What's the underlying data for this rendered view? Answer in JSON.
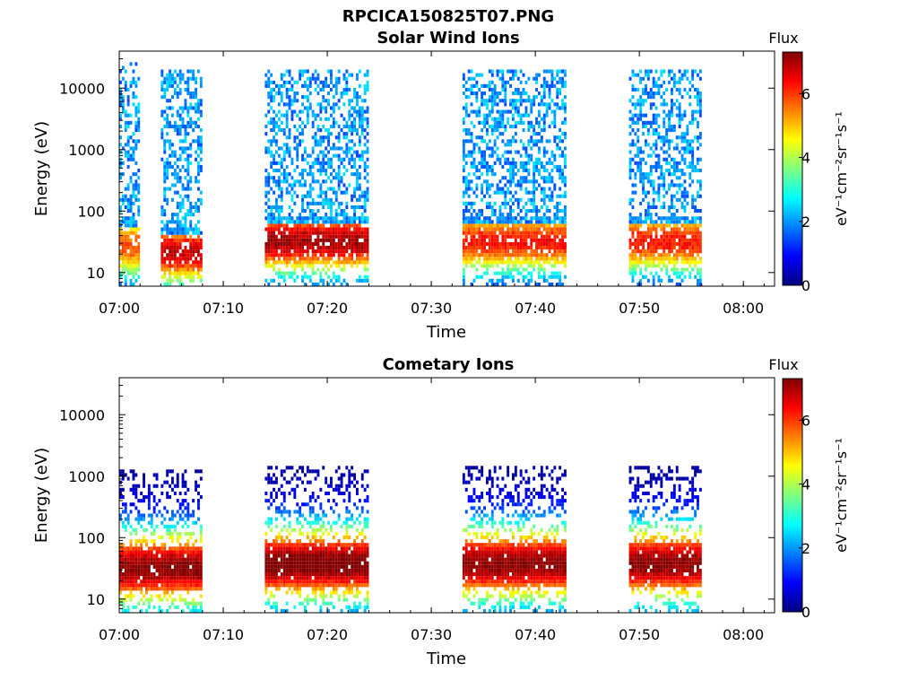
{
  "figure": {
    "title": "RPCICA150825T07.PNG",
    "colormap": [
      "#00007f",
      "#0000ff",
      "#007fff",
      "#00ffff",
      "#7fff7f",
      "#ffff00",
      "#ff7f00",
      "#ff0000",
      "#7f0000"
    ]
  },
  "colorbar": {
    "label": "Flux",
    "unit_text": "eV⁻¹cm⁻²sr⁻¹s⁻¹",
    "range": [
      0,
      7.3
    ],
    "ticks": [
      "0",
      "2",
      "4",
      "6"
    ]
  },
  "chart_data": [
    {
      "type": "heatmap",
      "title": "Solar Wind Ions",
      "xlabel": "Time",
      "ylabel": "Energy (eV)",
      "xlim": [
        "07:00",
        "08:03"
      ],
      "ylim": [
        6,
        40000
      ],
      "yscale": "log",
      "x_ticks": [
        "07:00",
        "07:10",
        "07:20",
        "07:30",
        "07:40",
        "07:50",
        "08:00"
      ],
      "y_ticks": [
        "10",
        "100",
        "1000",
        "10000"
      ],
      "grid": false,
      "bursts": [
        {
          "start": "07:00",
          "end": "07:02",
          "emax": 20000,
          "peak_energy": 25,
          "peak_flux": 5.5
        },
        {
          "start": "07:04",
          "end": "07:08",
          "emax": 15000,
          "peak_energy": 20,
          "peak_flux": 6.5
        },
        {
          "start": "07:14",
          "end": "07:24",
          "emax": 15000,
          "peak_energy": 30,
          "peak_flux": 6.8
        },
        {
          "start": "07:33",
          "end": "07:43",
          "emax": 15000,
          "peak_energy": 30,
          "peak_flux": 6.0
        },
        {
          "start": "07:49",
          "end": "07:56",
          "emax": 15000,
          "peak_energy": 30,
          "peak_flux": 6.0
        }
      ]
    },
    {
      "type": "heatmap",
      "title": "Cometary Ions",
      "xlabel": "Time",
      "ylabel": "Energy (eV)",
      "xlim": [
        "07:00",
        "08:03"
      ],
      "ylim": [
        6,
        40000
      ],
      "yscale": "log",
      "x_ticks": [
        "07:00",
        "07:10",
        "07:20",
        "07:30",
        "07:40",
        "07:50",
        "08:00"
      ],
      "y_ticks": [
        "10",
        "100",
        "1000",
        "10000"
      ],
      "grid": false,
      "bursts": [
        {
          "start": "07:00",
          "end": "07:08",
          "emax": 1000,
          "peak_energy": 30,
          "peak_flux": 7.0
        },
        {
          "start": "07:14",
          "end": "07:24",
          "emax": 1000,
          "peak_energy": 35,
          "peak_flux": 7.2
        },
        {
          "start": "07:33",
          "end": "07:43",
          "emax": 1000,
          "peak_energy": 35,
          "peak_flux": 7.0
        },
        {
          "start": "07:49",
          "end": "07:56",
          "emax": 1500,
          "peak_energy": 35,
          "peak_flux": 7.0
        }
      ]
    }
  ]
}
